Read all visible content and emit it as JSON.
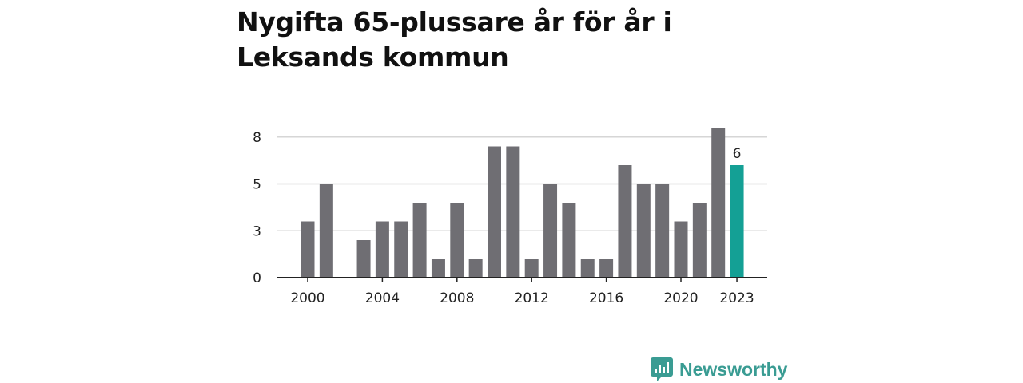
{
  "title": "Nygifta 65-plussare år för år i Leksands kommun",
  "brand": {
    "name": "Newsworthy",
    "color": "#3a9c93"
  },
  "chart_data": {
    "type": "bar",
    "x": [
      2000,
      2001,
      2002,
      2003,
      2004,
      2005,
      2006,
      2007,
      2008,
      2009,
      2010,
      2011,
      2012,
      2013,
      2014,
      2015,
      2016,
      2017,
      2018,
      2019,
      2020,
      2021,
      2022,
      2023
    ],
    "values": [
      3,
      5,
      0,
      2,
      3,
      3,
      4,
      1,
      4,
      1,
      7,
      7,
      1,
      5,
      4,
      1,
      1,
      6,
      5,
      5,
      3,
      4,
      8,
      6
    ],
    "xticks": [
      "2000",
      "2004",
      "2008",
      "2012",
      "2016",
      "2020",
      "2023"
    ],
    "xtick_values": [
      2000,
      2004,
      2008,
      2012,
      2016,
      2020,
      2023
    ],
    "yticks": [
      "0",
      "3",
      "5",
      "8"
    ],
    "ytick_values": [
      0,
      2.5,
      5,
      7.5
    ],
    "ylim": [
      0,
      8
    ],
    "highlight": {
      "x": 2023,
      "label": "6"
    },
    "grid": true,
    "colors": {
      "bar": "#6f6e73",
      "highlight": "#14a095",
      "grid": "#d6d6d6",
      "axis": "#222222"
    }
  }
}
